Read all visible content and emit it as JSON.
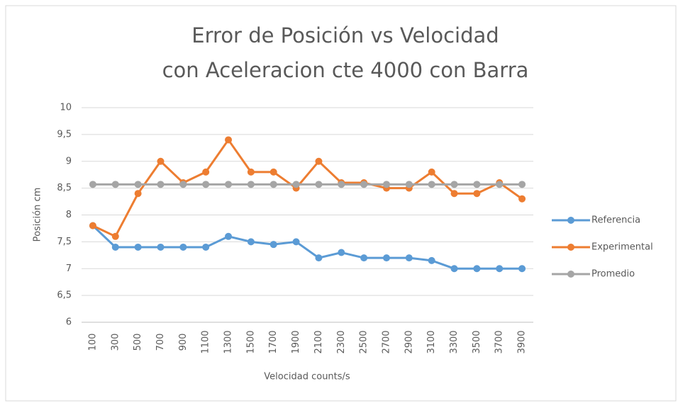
{
  "chart_data": {
    "type": "line",
    "title": [
      "Error de Posición vs Velocidad",
      "con Aceleracion cte 4000 con Barra"
    ],
    "x_label": "Velocidad counts/s",
    "y_label": "Posición cm",
    "categories": [
      "100",
      "300",
      "500",
      "700",
      "900",
      "1100",
      "1300",
      "1500",
      "1700",
      "1900",
      "2100",
      "2300",
      "2500",
      "2700",
      "2900",
      "3100",
      "3300",
      "3500",
      "3700",
      "3900"
    ],
    "series": [
      {
        "name": "Referencia",
        "color": "#5b9bd5",
        "values": [
          7.8,
          7.4,
          7.4,
          7.4,
          7.4,
          7.4,
          7.6,
          7.5,
          7.45,
          7.5,
          7.2,
          7.3,
          7.2,
          7.2,
          7.2,
          7.15,
          7.0,
          7.0,
          7.0,
          7.0
        ]
      },
      {
        "name": "Experimental",
        "color": "#ed7d31",
        "values": [
          7.8,
          7.6,
          8.4,
          9.0,
          8.6,
          8.8,
          9.4,
          8.8,
          8.8,
          8.5,
          9.0,
          8.6,
          8.6,
          8.5,
          8.5,
          8.8,
          8.4,
          8.4,
          8.6,
          8.3
        ]
      },
      {
        "name": "Promedio",
        "color": "#a5a5a5",
        "values": [
          8.57,
          8.57,
          8.57,
          8.57,
          8.57,
          8.57,
          8.57,
          8.57,
          8.57,
          8.57,
          8.57,
          8.57,
          8.57,
          8.57,
          8.57,
          8.57,
          8.57,
          8.57,
          8.57,
          8.57
        ]
      }
    ],
    "ylim": [
      6,
      10
    ],
    "yticks": [
      6,
      {
        "value": 6.5,
        "label": "6,5"
      },
      7,
      {
        "value": 7.5,
        "label": "7,5"
      },
      8,
      {
        "value": 8.5,
        "label": "8,5"
      },
      9,
      {
        "value": 9.5,
        "label": "9,5"
      },
      10
    ],
    "grid": true,
    "legend": "right"
  }
}
